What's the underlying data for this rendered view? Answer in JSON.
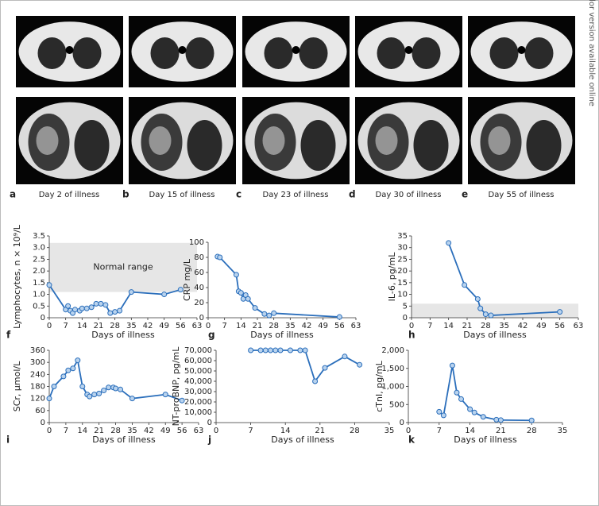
{
  "side_note": "Color version available online",
  "ct_panels": [
    {
      "letter": "a",
      "caption": "Day 2 of illness"
    },
    {
      "letter": "b",
      "caption": "Day 15 of illness"
    },
    {
      "letter": "c",
      "caption": "Day 23 of illness"
    },
    {
      "letter": "d",
      "caption": "Day 30 of illness"
    },
    {
      "letter": "e",
      "caption": "Day 55 of illness"
    }
  ],
  "chart_data": [
    {
      "type": "line",
      "panel": "f",
      "ylabel": "Lymphocytes, n × 10⁹/L",
      "xlabel": "Days of illness",
      "color": "#2a6ebb",
      "x": [
        0,
        7,
        8,
        9,
        10,
        11,
        13,
        14,
        16,
        18,
        20,
        22,
        24,
        26,
        28,
        30,
        35,
        49,
        56
      ],
      "values": [
        1.4,
        0.35,
        0.5,
        0.3,
        0.2,
        0.35,
        0.3,
        0.4,
        0.4,
        0.45,
        0.6,
        0.6,
        0.55,
        0.2,
        0.25,
        0.3,
        1.1,
        1.0,
        1.2
      ],
      "normal_range": [
        1.1,
        3.2
      ],
      "normal_range_label": "Normal range",
      "xlim": [
        0,
        63
      ],
      "xticks": [
        0,
        7,
        14,
        21,
        28,
        35,
        42,
        49,
        56,
        63
      ],
      "ylim": [
        0,
        3.5
      ],
      "yticks": [
        0,
        0.5,
        {
          "value": 1,
          "label": "1.0"
        },
        1.5,
        {
          "value": 2,
          "label": "2.0"
        },
        2.5,
        {
          "value": 3,
          "label": "3.0"
        },
        3.5
      ]
    },
    {
      "type": "line",
      "panel": "g",
      "ylabel": "CRP mg/L",
      "xlabel": "Days of illness",
      "color": "#2a6ebb",
      "x": [
        4,
        5,
        12,
        13,
        14,
        15,
        16,
        17,
        20,
        24,
        26,
        28,
        56
      ],
      "values": [
        81,
        80,
        57,
        35,
        33,
        25,
        30,
        25,
        13,
        5,
        3,
        6,
        1
      ],
      "xlim": [
        0,
        63
      ],
      "xticks": [
        0,
        7,
        14,
        21,
        28,
        35,
        42,
        49,
        56,
        63
      ],
      "ylim": [
        0,
        100
      ],
      "yticks": [
        0,
        20,
        40,
        60,
        80,
        100
      ]
    },
    {
      "type": "line",
      "panel": "h",
      "ylabel": "IL-6, pg/mL",
      "xlabel": "Days of illness",
      "color": "#2a6ebb",
      "x": [
        14,
        20,
        25,
        26,
        28,
        30,
        56
      ],
      "values": [
        32,
        14,
        8,
        4,
        1.5,
        1,
        2.5
      ],
      "normal_range": [
        0,
        6
      ],
      "xlim": [
        0,
        63
      ],
      "xticks": [
        0,
        7,
        14,
        21,
        28,
        35,
        42,
        49,
        56,
        63
      ],
      "ylim": [
        0,
        35
      ],
      "yticks": [
        0,
        5,
        10,
        15,
        20,
        25,
        30,
        35
      ]
    },
    {
      "type": "line",
      "panel": "i",
      "ylabel": "SCr, μmol/L",
      "xlabel": "Days of illness",
      "color": "#2a6ebb",
      "x": [
        0,
        2,
        6,
        8,
        10,
        12,
        14,
        16,
        17,
        19,
        21,
        23,
        25,
        27,
        28,
        30,
        35,
        49,
        56
      ],
      "values": [
        120,
        180,
        230,
        260,
        270,
        310,
        180,
        140,
        130,
        140,
        145,
        160,
        175,
        175,
        170,
        165,
        120,
        140,
        110
      ],
      "xlim": [
        0,
        63
      ],
      "xticks": [
        0,
        7,
        14,
        21,
        28,
        35,
        42,
        49,
        56,
        63
      ],
      "ylim": [
        0,
        360
      ],
      "yticks": [
        0,
        60,
        120,
        180,
        240,
        300,
        360
      ]
    },
    {
      "type": "line",
      "panel": "j",
      "ylabel": "NT-proBNP, pg/mL",
      "xlabel": "Days of illness",
      "color": "#2a6ebb",
      "x": [
        7,
        9,
        10,
        11,
        12,
        13,
        15,
        17,
        18,
        20,
        22,
        26,
        29
      ],
      "values": [
        70000,
        70000,
        70000,
        70000,
        70000,
        70000,
        70000,
        70000,
        70000,
        40000,
        53000,
        64000,
        56000
      ],
      "xlim": [
        0,
        35
      ],
      "xticks": [
        0,
        7,
        14,
        21,
        28,
        35
      ],
      "ylim": [
        0,
        70000
      ],
      "yticks": [
        0,
        {
          "value": 10000,
          "label": "10,000"
        },
        {
          "value": 20000,
          "label": "20,000"
        },
        {
          "value": 30000,
          "label": "30,000"
        },
        {
          "value": 40000,
          "label": "40,000"
        },
        {
          "value": 50000,
          "label": "50,000"
        },
        {
          "value": 60000,
          "label": "60,000"
        },
        {
          "value": 70000,
          "label": "70,000"
        }
      ]
    },
    {
      "type": "line",
      "panel": "k",
      "ylabel": "cTnI, pg/mL",
      "xlabel": "Days of illness",
      "color": "#2a6ebb",
      "x": [
        7,
        8,
        10,
        11,
        12,
        14,
        15,
        17,
        20,
        21,
        28
      ],
      "values": [
        300,
        200,
        1580,
        830,
        650,
        370,
        280,
        160,
        80,
        70,
        60
      ],
      "xlim": [
        0,
        35
      ],
      "xticks": [
        0,
        7,
        14,
        21,
        28,
        35
      ],
      "ylim": [
        0,
        2000
      ],
      "yticks": [
        0,
        500,
        {
          "value": 1000,
          "label": "1,000"
        },
        {
          "value": 1500,
          "label": "1,500"
        },
        {
          "value": 2000,
          "label": "2,000"
        }
      ]
    }
  ]
}
